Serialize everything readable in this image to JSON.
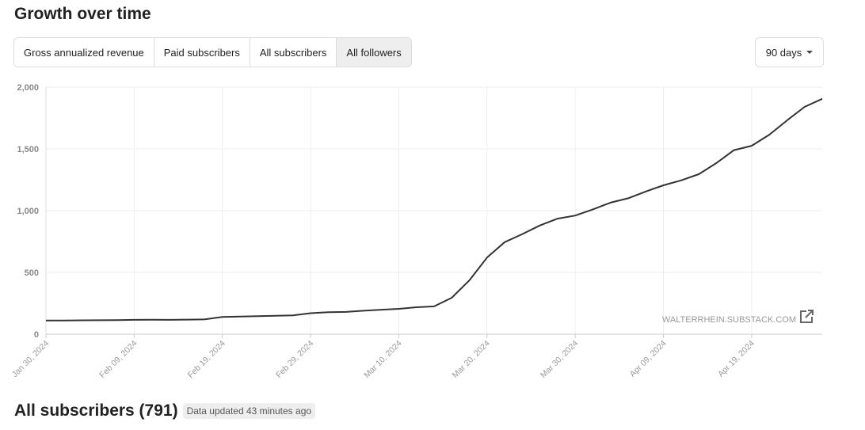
{
  "header": {
    "title": "Growth over time"
  },
  "tabs": [
    "Gross annualized revenue",
    "Paid subscribers",
    "All subscribers",
    "All followers"
  ],
  "range_select": "90 days",
  "chart_data": {
    "type": "line",
    "annotation": "WALTERRHEIN.SUBSTACK.COM",
    "color": "#333333",
    "grid": true,
    "x": [
      "2024-01-30",
      "2024-02-01",
      "2024-02-03",
      "2024-02-05",
      "2024-02-07",
      "2024-02-09",
      "2024-02-11",
      "2024-02-13",
      "2024-02-15",
      "2024-02-17",
      "2024-02-19",
      "2024-02-21",
      "2024-02-23",
      "2024-02-25",
      "2024-02-27",
      "2024-02-29",
      "2024-03-02",
      "2024-03-04",
      "2024-03-06",
      "2024-03-08",
      "2024-03-10",
      "2024-03-12",
      "2024-03-14",
      "2024-03-16",
      "2024-03-18",
      "2024-03-20",
      "2024-03-22",
      "2024-03-24",
      "2024-03-26",
      "2024-03-28",
      "2024-03-30",
      "2024-04-01",
      "2024-04-03",
      "2024-04-05",
      "2024-04-07",
      "2024-04-09",
      "2024-04-11",
      "2024-04-13",
      "2024-04-15",
      "2024-04-17",
      "2024-04-19",
      "2024-04-21",
      "2024-04-23",
      "2024-04-25",
      "2024-04-27"
    ],
    "values": [
      110,
      110,
      112,
      113,
      114,
      116,
      117,
      116,
      118,
      120,
      140,
      143,
      146,
      149,
      152,
      170,
      178,
      180,
      190,
      198,
      205,
      218,
      225,
      295,
      435,
      620,
      745,
      810,
      880,
      935,
      960,
      1010,
      1065,
      1100,
      1155,
      1205,
      1245,
      1295,
      1385,
      1490,
      1525,
      1615,
      1730,
      1840,
      1905
    ],
    "xlim": [
      "2024-01-30",
      "2024-04-27"
    ],
    "xticks": [
      {
        "value": "2024-01-30",
        "label": "Jan 30, 2024"
      },
      {
        "value": "2024-02-09",
        "label": "Feb 09, 2024"
      },
      {
        "value": "2024-02-19",
        "label": "Feb 19, 2024"
      },
      {
        "value": "2024-02-29",
        "label": "Feb 29, 2024"
      },
      {
        "value": "2024-03-10",
        "label": "Mar 10, 2024"
      },
      {
        "value": "2024-03-20",
        "label": "Mar 20, 2024"
      },
      {
        "value": "2024-03-30",
        "label": "Mar 30, 2024"
      },
      {
        "value": "2024-04-09",
        "label": "Apr 09, 2024"
      },
      {
        "value": "2024-04-19",
        "label": "Apr 19, 2024"
      }
    ],
    "ylim": [
      0,
      2000
    ],
    "yticks": [
      0,
      500,
      {
        "value": 1000,
        "label": "1,000"
      },
      {
        "value": 1500,
        "label": "1,500"
      },
      {
        "value": 2000,
        "label": "2,000"
      }
    ]
  },
  "footer": {
    "title": "All subscribers (791)",
    "note": "Data updated 43 minutes ago"
  }
}
